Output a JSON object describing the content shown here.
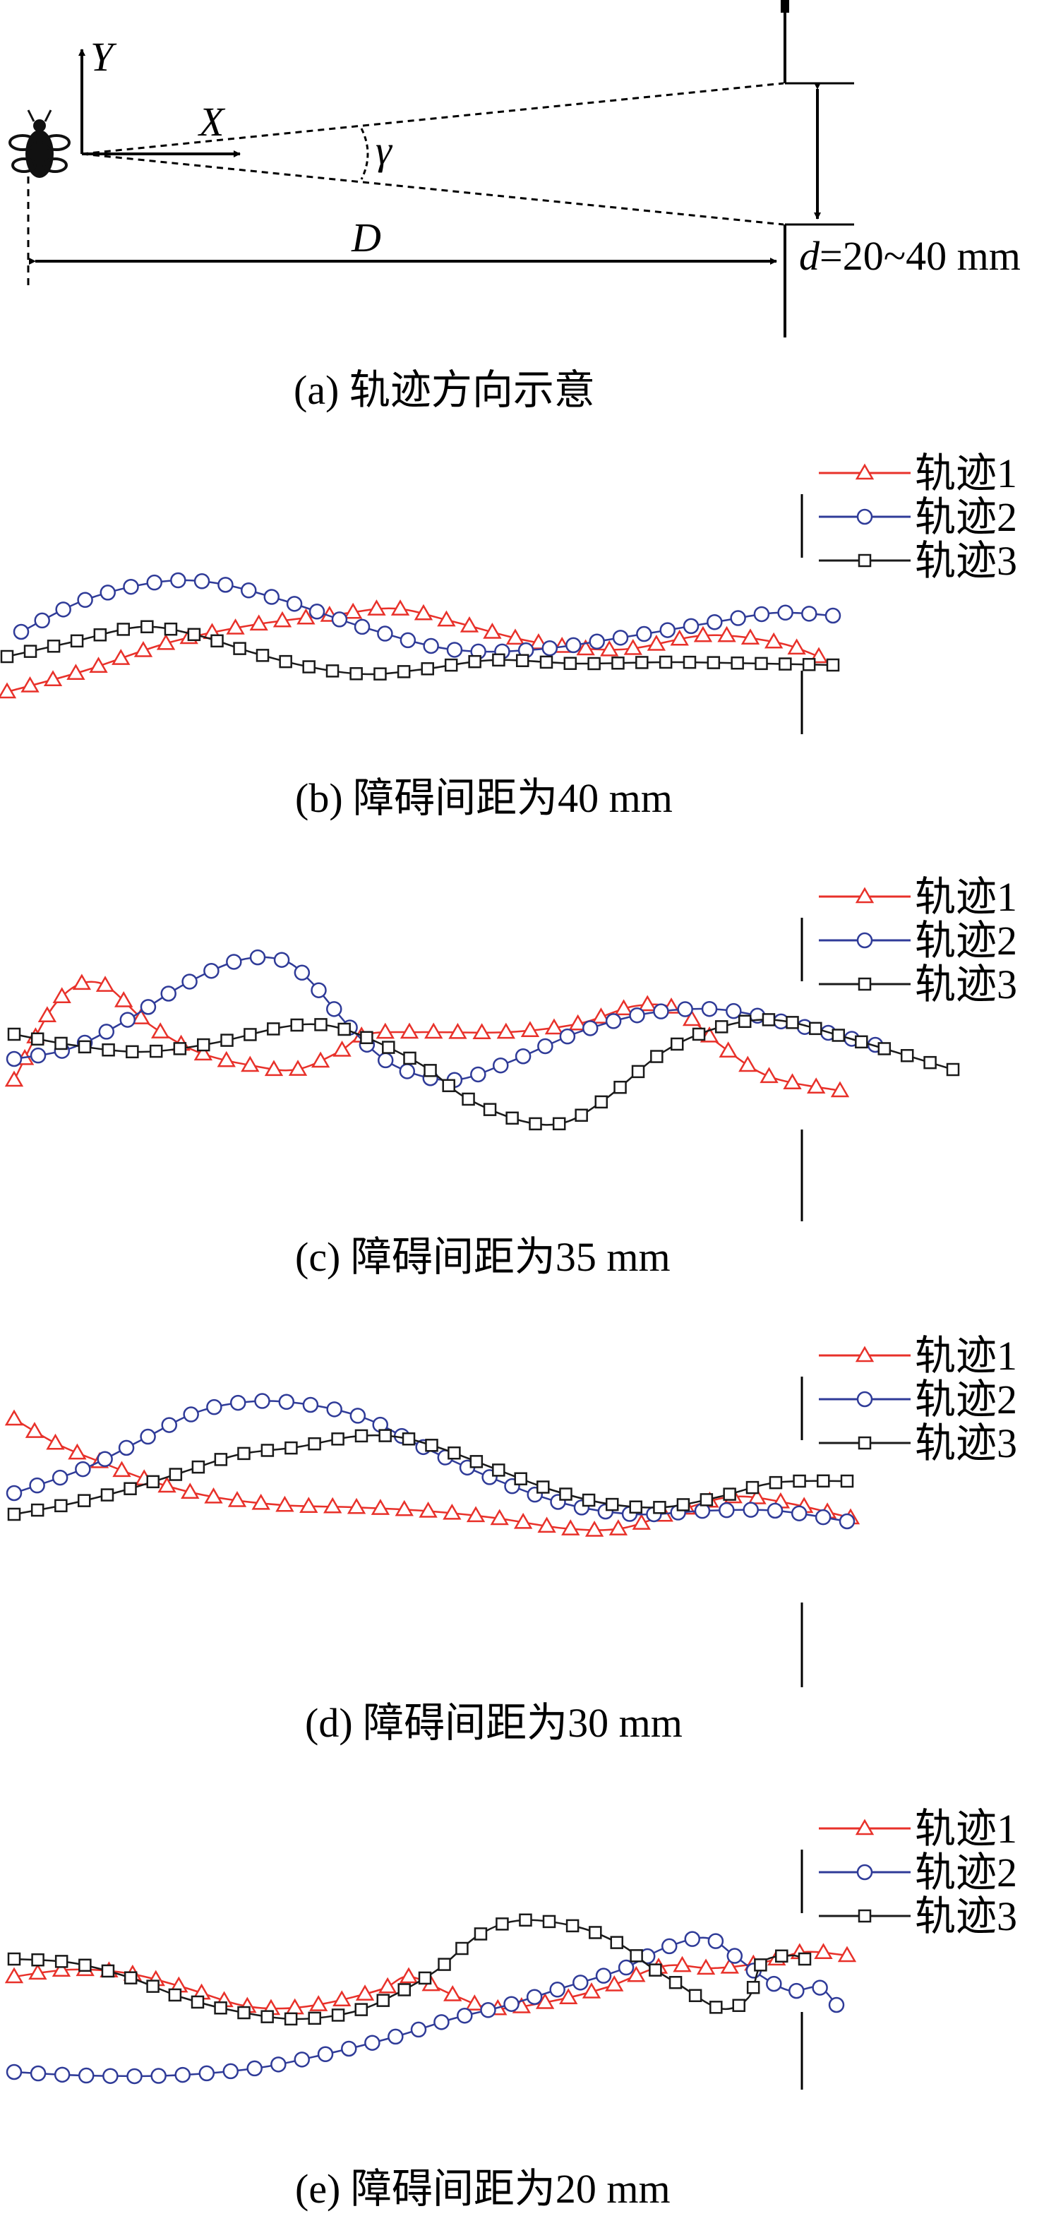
{
  "panel_a": {
    "y_axis_label": "Y",
    "x_axis_label": "X",
    "angle_label": "γ",
    "distance_label": "D",
    "gap_label_var": "d",
    "gap_label_value": "=20~40 mm",
    "caption": "(a) 轨迹方向示意"
  },
  "series_colors": {
    "track1": "#e8312a",
    "track2": "#2f3b98",
    "track3": "#1a1a1a"
  },
  "legend": [
    "轨迹1",
    "轨迹2",
    "轨迹3"
  ],
  "panels": [
    {
      "id": "b",
      "caption": "(b) 障碍间距为40 mm"
    },
    {
      "id": "c",
      "caption": "(c) 障碍间距为35 mm"
    },
    {
      "id": "d",
      "caption": "(d) 障碍间距为30 mm"
    },
    {
      "id": "e",
      "caption": "(e) 障碍间距为20 mm"
    }
  ]
}
